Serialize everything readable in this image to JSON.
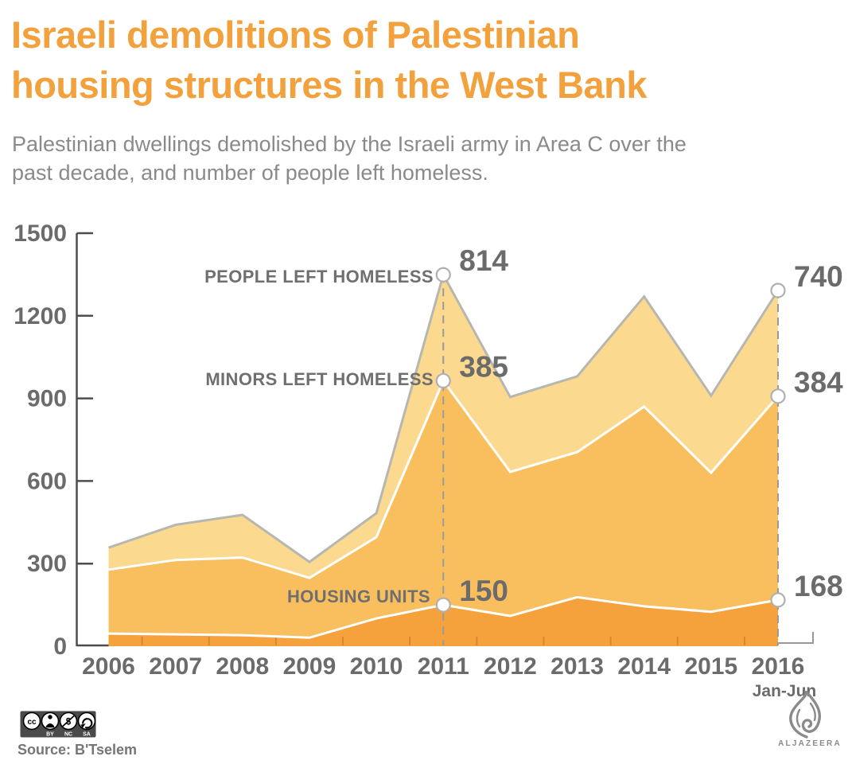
{
  "colors": {
    "title_orange": "#F2A13C",
    "band_light": "#FBD98F",
    "band_medium": "#F9BF5E",
    "band_dark": "#F6A23C",
    "boundary_gray": "#B7B7B2",
    "axis_gray": "#4D4D4D",
    "label_gray": "#6B6B6B",
    "subtitle_gray": "#8A8A8A"
  },
  "header": {
    "title_lines": [
      "Israeli demolitions of Palestinian",
      "housing structures in the West Bank"
    ],
    "subtitle_lines": [
      "Palestinian dwellings demolished by the Israeli army in Area C over the",
      "past decade, and number of people left homeless."
    ]
  },
  "chart_data": {
    "type": "area",
    "stacked": true,
    "stack_note": "bands stacked bottom-to-top: housing_units (dark), people_left_homeless (medium), minors_left_homeless (light); value markers at 2011 and 2016",
    "categories": [
      "2006",
      "2007",
      "2008",
      "2009",
      "2010",
      "2011",
      "2012",
      "2013",
      "2014",
      "2015",
      "2016"
    ],
    "last_category_sublabel": "Jan-Jun",
    "ylim": [
      0,
      1500
    ],
    "y_ticks": [
      0,
      300,
      600,
      900,
      1200,
      1500
    ],
    "grid": false,
    "series": [
      {
        "id": "housing_units",
        "label": "HOUSING UNITS",
        "color": "#F6A23C",
        "values": [
          46,
          43,
          40,
          31,
          101,
          150,
          110,
          178,
          145,
          125,
          168
        ]
      },
      {
        "id": "people_left_homeless",
        "label": "PEOPLE LEFT HOMELESS",
        "color": "#F9BF5E",
        "values": [
          232,
          270,
          282,
          217,
          295,
          814,
          523,
          527,
          725,
          505,
          740
        ]
      },
      {
        "id": "minors_left_homeless",
        "label": "MINORS LEFT HOMELESS",
        "color": "#FBD98F",
        "values": [
          80,
          128,
          155,
          58,
          87,
          385,
          272,
          275,
          400,
          280,
          384
        ]
      }
    ],
    "annotations": [
      {
        "category": "2011",
        "items": [
          {
            "series": "people_left_homeless",
            "label": "814"
          },
          {
            "series": "minors_left_homeless",
            "label": "385"
          },
          {
            "series": "housing_units",
            "label": "150"
          }
        ]
      },
      {
        "category": "2016",
        "items": [
          {
            "series": "people_left_homeless",
            "label": "740"
          },
          {
            "series": "minors_left_homeless",
            "label": "384"
          },
          {
            "series": "housing_units",
            "label": "168"
          }
        ]
      }
    ]
  },
  "footer": {
    "source": "Source: B'Tselem",
    "license_badge": {
      "cc_text": "cc",
      "icons": [
        "cc-icon",
        "attribution-person-icon",
        "non-commercial-icon",
        "share-alike-icon"
      ],
      "labels": [
        "BY",
        "NC",
        "SA"
      ]
    },
    "logo_text": "ALJAZEERA"
  }
}
